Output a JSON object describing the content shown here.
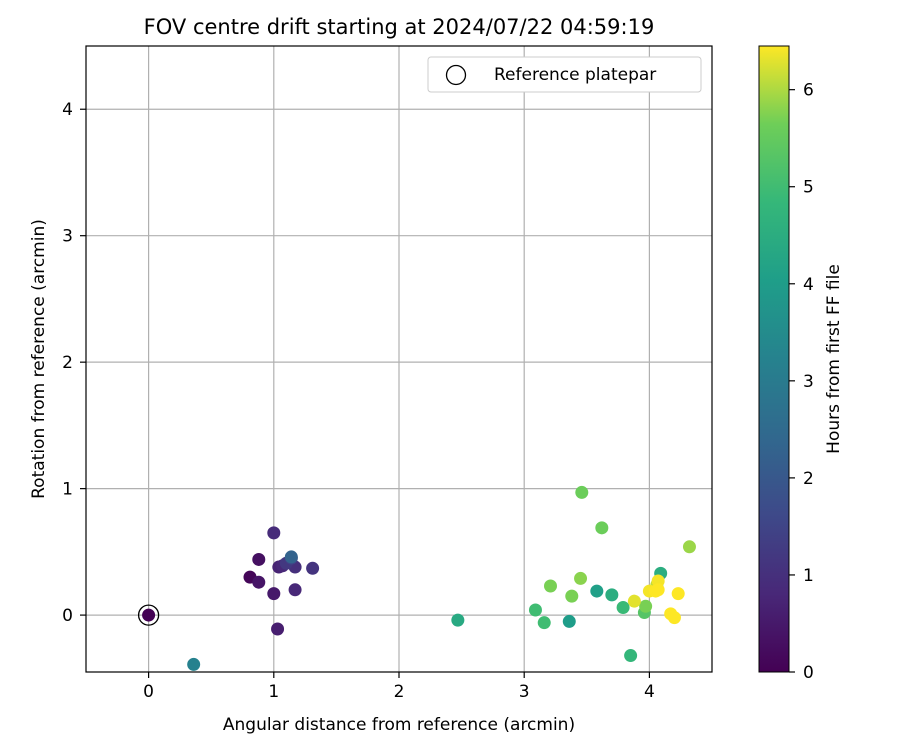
{
  "chart_data": {
    "type": "scatter",
    "title": "FOV centre drift starting at 2024/07/22 04:59:19",
    "xlabel": "Angular distance from reference (arcmin)",
    "ylabel": "Rotation from reference (arcmin)",
    "xlim": [
      -0.5,
      4.5
    ],
    "ylim": [
      -0.45,
      4.5
    ],
    "xticks": [
      0,
      1,
      2,
      3,
      4
    ],
    "yticks": [
      0,
      1,
      2,
      3,
      4
    ],
    "grid": true,
    "legend": {
      "placement": "top-right",
      "entries": [
        "Reference platepar"
      ]
    },
    "reference_point": {
      "x": 0,
      "y": 0
    },
    "colorbar": {
      "label": "Hours from first FF file",
      "colormap": "viridis",
      "range": [
        0,
        6.45
      ],
      "ticks": [
        0,
        1,
        2,
        3,
        4,
        5,
        6
      ]
    },
    "points": [
      {
        "x": 0.0,
        "y": 0.0,
        "c": 0.0
      },
      {
        "x": 0.81,
        "y": 0.3,
        "c": 0.1
      },
      {
        "x": 0.88,
        "y": 0.44,
        "c": 0.3
      },
      {
        "x": 0.88,
        "y": 0.26,
        "c": 0.4
      },
      {
        "x": 1.0,
        "y": 0.17,
        "c": 0.5
      },
      {
        "x": 1.03,
        "y": -0.11,
        "c": 0.6
      },
      {
        "x": 1.04,
        "y": 0.38,
        "c": 0.7
      },
      {
        "x": 1.07,
        "y": 0.39,
        "c": 0.8
      },
      {
        "x": 1.17,
        "y": 0.2,
        "c": 0.8
      },
      {
        "x": 1.0,
        "y": 0.65,
        "c": 0.9
      },
      {
        "x": 1.17,
        "y": 0.38,
        "c": 1.0
      },
      {
        "x": 1.31,
        "y": 0.37,
        "c": 1.1
      },
      {
        "x": 1.1,
        "y": 0.41,
        "c": 1.2
      },
      {
        "x": 1.14,
        "y": 0.45,
        "c": 1.5
      },
      {
        "x": 1.14,
        "y": 0.46,
        "c": 2.3
      },
      {
        "x": 0.36,
        "y": -0.39,
        "c": 3.2
      },
      {
        "x": 2.47,
        "y": -0.04,
        "c": 4.4
      },
      {
        "x": 3.36,
        "y": -0.05,
        "c": 4.0
      },
      {
        "x": 3.58,
        "y": 0.19,
        "c": 4.1
      },
      {
        "x": 3.7,
        "y": 0.16,
        "c": 4.5
      },
      {
        "x": 4.09,
        "y": 0.33,
        "c": 4.5
      },
      {
        "x": 3.85,
        "y": -0.32,
        "c": 4.8
      },
      {
        "x": 3.79,
        "y": 0.06,
        "c": 4.9
      },
      {
        "x": 3.09,
        "y": 0.04,
        "c": 5.0
      },
      {
        "x": 3.16,
        "y": -0.06,
        "c": 5.0
      },
      {
        "x": 3.96,
        "y": 0.02,
        "c": 5.3
      },
      {
        "x": 3.62,
        "y": 0.69,
        "c": 5.6
      },
      {
        "x": 3.46,
        "y": 0.97,
        "c": 5.6
      },
      {
        "x": 3.21,
        "y": 0.23,
        "c": 5.7
      },
      {
        "x": 3.38,
        "y": 0.15,
        "c": 5.7
      },
      {
        "x": 3.45,
        "y": 0.29,
        "c": 5.8
      },
      {
        "x": 3.97,
        "y": 0.07,
        "c": 5.7
      },
      {
        "x": 4.32,
        "y": 0.54,
        "c": 5.9
      },
      {
        "x": 4.06,
        "y": 0.24,
        "c": 6.1
      },
      {
        "x": 3.88,
        "y": 0.11,
        "c": 6.3
      },
      {
        "x": 4.0,
        "y": 0.19,
        "c": 6.4
      },
      {
        "x": 4.07,
        "y": 0.27,
        "c": 6.4
      },
      {
        "x": 4.05,
        "y": 0.19,
        "c": 6.45
      },
      {
        "x": 4.07,
        "y": 0.2,
        "c": 6.45
      },
      {
        "x": 4.17,
        "y": 0.01,
        "c": 6.45
      },
      {
        "x": 4.2,
        "y": -0.02,
        "c": 6.45
      },
      {
        "x": 4.23,
        "y": 0.17,
        "c": 6.45
      }
    ]
  }
}
